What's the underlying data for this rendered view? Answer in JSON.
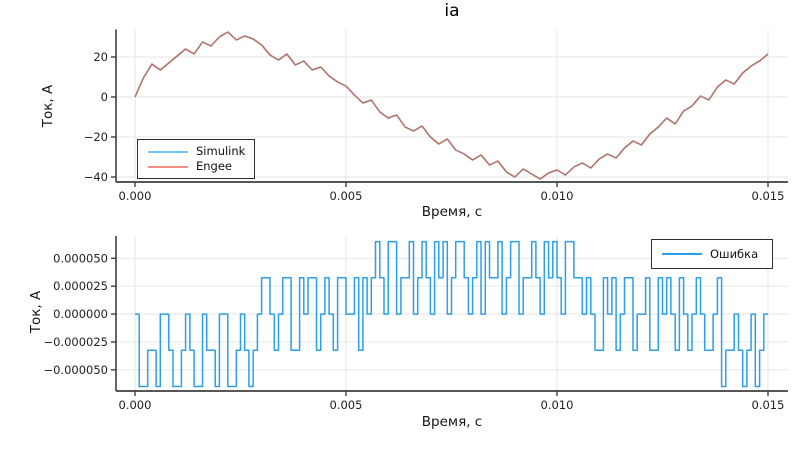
{
  "figure": {
    "background": "#ffffff",
    "style": {
      "spine_color": "#3f3f3f",
      "grid_color": "#e6e6e6",
      "tick_label_color": "#1f1f1f",
      "label_color": "#151515",
      "legend_border_color": "#2e2e2e"
    }
  },
  "chart_data": [
    {
      "type": "line",
      "title": "ia",
      "xlabel": "Время, с",
      "ylabel": "Ток, А",
      "grid": true,
      "legend_position": "bottom-left-inside",
      "xlim": [
        -0.00045,
        0.015474
      ],
      "ylim": [
        -42.5,
        33.75
      ],
      "xticks": {
        "values": [
          0,
          0.005,
          0.01,
          0.015
        ],
        "labels": [
          "0.000",
          "0.005",
          "0.010",
          "0.015"
        ]
      },
      "yticks": {
        "values": [
          20,
          0,
          -20,
          -40
        ],
        "labels": [
          "20",
          "0",
          "−20",
          "−40"
        ]
      },
      "x_start": 0,
      "sample_period_s": 0.0002,
      "interpolation": "linear",
      "visible_line_color": "#b87164",
      "series": [
        {
          "name": "Simulink",
          "color": "#6fc3f2",
          "note": "coincides with Engee curve (hidden underneath)",
          "values": [
            0,
            9.5,
            16.5,
            13.5,
            17,
            20.5,
            24,
            21.5,
            27.5,
            25.5,
            30,
            32.5,
            28.5,
            30.5,
            29,
            26,
            21,
            18.5,
            21.5,
            16,
            18,
            13.5,
            15,
            10.5,
            7.5,
            5.5,
            1,
            -3,
            -1.5,
            -7.5,
            -10.5,
            -9,
            -15,
            -17,
            -14.5,
            -20,
            -23.5,
            -21,
            -26.5,
            -28.5,
            -31.5,
            -29,
            -34,
            -32,
            -37.5,
            -40,
            -36,
            -38.5,
            -41,
            -38,
            -36.5,
            -39,
            -35,
            -33,
            -35.5,
            -31,
            -28.5,
            -30.5,
            -25.5,
            -22,
            -24,
            -18.5,
            -15,
            -10.5,
            -13.5,
            -7,
            -4.5,
            0.5,
            -1.5,
            5,
            8.5,
            6.5,
            12,
            15.5,
            18,
            21.5
          ]
        },
        {
          "name": "Engee",
          "color": "#ee9180",
          "values": [
            0,
            9.5,
            16.5,
            13.5,
            17,
            20.5,
            24,
            21.5,
            27.5,
            25.5,
            30,
            32.5,
            28.5,
            30.5,
            29,
            26,
            21,
            18.5,
            21.5,
            16,
            18,
            13.5,
            15,
            10.5,
            7.5,
            5.5,
            1,
            -3,
            -1.5,
            -7.5,
            -10.5,
            -9,
            -15,
            -17,
            -14.5,
            -20,
            -23.5,
            -21,
            -26.5,
            -28.5,
            -31.5,
            -29,
            -34,
            -32,
            -37.5,
            -40,
            -36,
            -38.5,
            -41,
            -38,
            -36.5,
            -39,
            -35,
            -33,
            -35.5,
            -31,
            -28.5,
            -30.5,
            -25.5,
            -22,
            -24,
            -18.5,
            -15,
            -10.5,
            -13.5,
            -7,
            -4.5,
            0.5,
            -1.5,
            5,
            8.5,
            6.5,
            12,
            15.5,
            18,
            21.5
          ]
        }
      ]
    },
    {
      "type": "line",
      "title": "",
      "xlabel": "Время, с",
      "ylabel": "Ток, А",
      "grid": true,
      "legend_position": "top-right-inside",
      "xlim": [
        -0.00045,
        0.015474
      ],
      "ylim": [
        -6.9e-05,
        7e-05
      ],
      "xticks": {
        "values": [
          0,
          0.005,
          0.01,
          0.015
        ],
        "labels": [
          "0.000",
          "0.005",
          "0.010",
          "0.015"
        ]
      },
      "yticks": {
        "values": [
          5e-05,
          2.5e-05,
          0,
          -2.5e-05,
          -5e-05
        ],
        "labels": [
          "0.000050",
          "0.000025",
          "0.000000",
          "−0.000025",
          "−0.000050"
        ]
      },
      "x_start": 0,
      "sample_period_s": 0.0001,
      "interpolation": "step-post",
      "series": [
        {
          "name": "Ошибка",
          "color": "#2d9fe8",
          "values": [
            0,
            -6.5e-05,
            -6.5e-05,
            -3.25e-05,
            -3.25e-05,
            -6.5e-05,
            0,
            0,
            -3.25e-05,
            -6.5e-05,
            -6.5e-05,
            -3.25e-05,
            0,
            -3.25e-05,
            -6.5e-05,
            -6.5e-05,
            0,
            -3.25e-05,
            -3.25e-05,
            -6.5e-05,
            0,
            0,
            -6.5e-05,
            -6.5e-05,
            -3.25e-05,
            0,
            -3.25e-05,
            -6.5e-05,
            -3.25e-05,
            0,
            3.25e-05,
            3.25e-05,
            0,
            -3.25e-05,
            0,
            3.25e-05,
            3.25e-05,
            -3.25e-05,
            -3.25e-05,
            3.25e-05,
            0,
            3.25e-05,
            3.25e-05,
            -3.25e-05,
            0,
            3.25e-05,
            0,
            -3.25e-05,
            3.25e-05,
            3.25e-05,
            0,
            0,
            3.25e-05,
            -3.25e-05,
            3.25e-05,
            0,
            3.25e-05,
            6.5e-05,
            3.25e-05,
            0,
            6.5e-05,
            6.5e-05,
            0,
            3.25e-05,
            3.25e-05,
            6.5e-05,
            0,
            3.25e-05,
            6.5e-05,
            3.25e-05,
            0,
            6.5e-05,
            3.25e-05,
            6.5e-05,
            0,
            3.25e-05,
            6.5e-05,
            6.5e-05,
            3.25e-05,
            0,
            3.25e-05,
            6.5e-05,
            0,
            6.5e-05,
            3.25e-05,
            3.25e-05,
            6.5e-05,
            0,
            3.25e-05,
            6.5e-05,
            6.5e-05,
            0,
            3.25e-05,
            3.25e-05,
            6.5e-05,
            3.25e-05,
            0,
            6.5e-05,
            3.25e-05,
            6.5e-05,
            3.25e-05,
            0,
            6.5e-05,
            6.5e-05,
            3.25e-05,
            3.25e-05,
            0,
            3.25e-05,
            0,
            -3.25e-05,
            -3.25e-05,
            3.25e-05,
            0,
            3.25e-05,
            -3.25e-05,
            0,
            3.25e-05,
            3.25e-05,
            -3.25e-05,
            0,
            0,
            3.25e-05,
            -3.25e-05,
            -3.25e-05,
            3.25e-05,
            0,
            3.25e-05,
            0,
            -3.25e-05,
            3.25e-05,
            0,
            -3.25e-05,
            0,
            3.25e-05,
            0,
            -3.25e-05,
            -3.25e-05,
            0,
            3.25e-05,
            -6.5e-05,
            -3.25e-05,
            -3.25e-05,
            0,
            -3.25e-05,
            -6.5e-05,
            -3.25e-05,
            0,
            -6.5e-05,
            -3.25e-05,
            0,
            0
          ]
        }
      ]
    }
  ]
}
